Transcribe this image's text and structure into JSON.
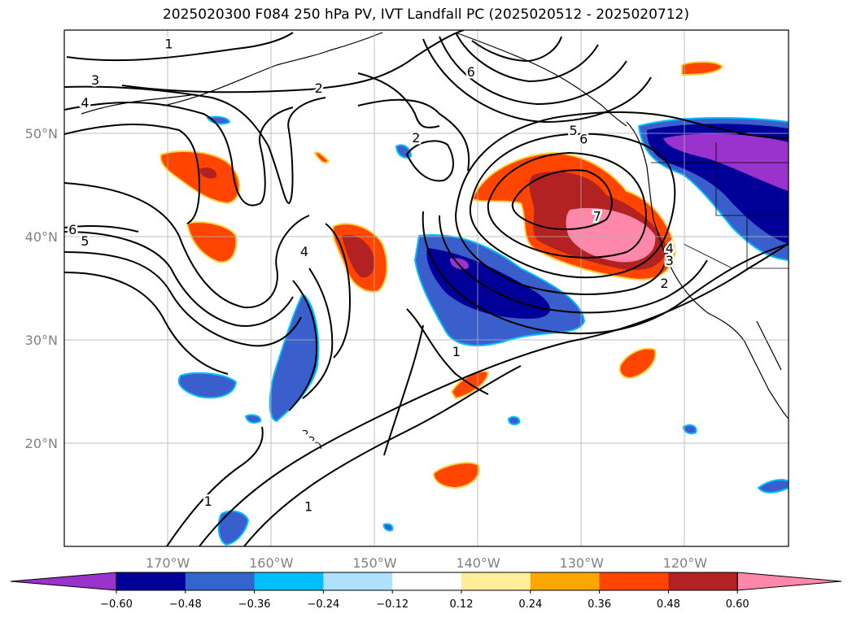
{
  "title": "2025020300 F084 250 hPa PV, IVT Landfall PC (2025020512 - 2025020712)",
  "map": {
    "projection": "PlateCarree",
    "lon_range": [
      -180,
      -110
    ],
    "lat_range": [
      10,
      60
    ],
    "gridlines": true,
    "lon_ticks": [
      {
        "lon": -170,
        "label": "170°W"
      },
      {
        "lon": -160,
        "label": "160°W"
      },
      {
        "lon": -150,
        "label": "150°W"
      },
      {
        "lon": -140,
        "label": "140°W"
      },
      {
        "lon": -130,
        "label": "130°W"
      },
      {
        "lon": -120,
        "label": "120°W"
      }
    ],
    "lat_ticks": [
      {
        "lat": 20,
        "label": "20°N"
      },
      {
        "lat": 30,
        "label": "30°N"
      },
      {
        "lat": 40,
        "label": "40°N"
      },
      {
        "lat": 50,
        "label": "50°N"
      }
    ]
  },
  "colorbar": {
    "extend": "both",
    "colors": [
      "#9933cc",
      "#000099",
      "#3366cc",
      "#00bfff",
      "#b0e0ff",
      "#ffffff",
      "#ffee99",
      "#ffa500",
      "#ff4500",
      "#b22222",
      "#ff88aa"
    ],
    "tick_labels": [
      "−0.60",
      "−0.48",
      "−0.36",
      "−0.24",
      "−0.12",
      "0.12",
      "0.24",
      "0.36",
      "0.48",
      "0.60"
    ]
  },
  "contour_labels": [
    {
      "text": "1",
      "lon": -169.9,
      "lat": 58.7
    },
    {
      "text": "3",
      "lon": -177.0,
      "lat": 55.2
    },
    {
      "text": "2",
      "lon": -155.4,
      "lat": 54.4
    },
    {
      "text": "4",
      "lon": -178.0,
      "lat": 53.0
    },
    {
      "text": "6",
      "lon": -140.7,
      "lat": 56.0
    },
    {
      "text": "5",
      "lon": -130.8,
      "lat": 50.3
    },
    {
      "text": "6",
      "lon": -129.8,
      "lat": 49.5
    },
    {
      "text": "2",
      "lon": -146.0,
      "lat": 49.6
    },
    {
      "text": "7",
      "lon": -128.5,
      "lat": 42.0
    },
    {
      "text": "6",
      "lon": -179.2,
      "lat": 40.7
    },
    {
      "text": "5",
      "lon": -178.0,
      "lat": 39.6
    },
    {
      "text": "4",
      "lon": -156.8,
      "lat": 38.6
    },
    {
      "text": "4",
      "lon": -121.5,
      "lat": 38.9
    },
    {
      "text": "3",
      "lon": -121.5,
      "lat": 37.7
    },
    {
      "text": "2",
      "lon": -122.0,
      "lat": 35.5
    },
    {
      "text": "1",
      "lon": -142.1,
      "lat": 28.9
    },
    {
      "text": "1",
      "lon": -166.1,
      "lat": 14.4
    },
    {
      "text": "1",
      "lon": -156.4,
      "lat": 13.9
    }
  ]
}
